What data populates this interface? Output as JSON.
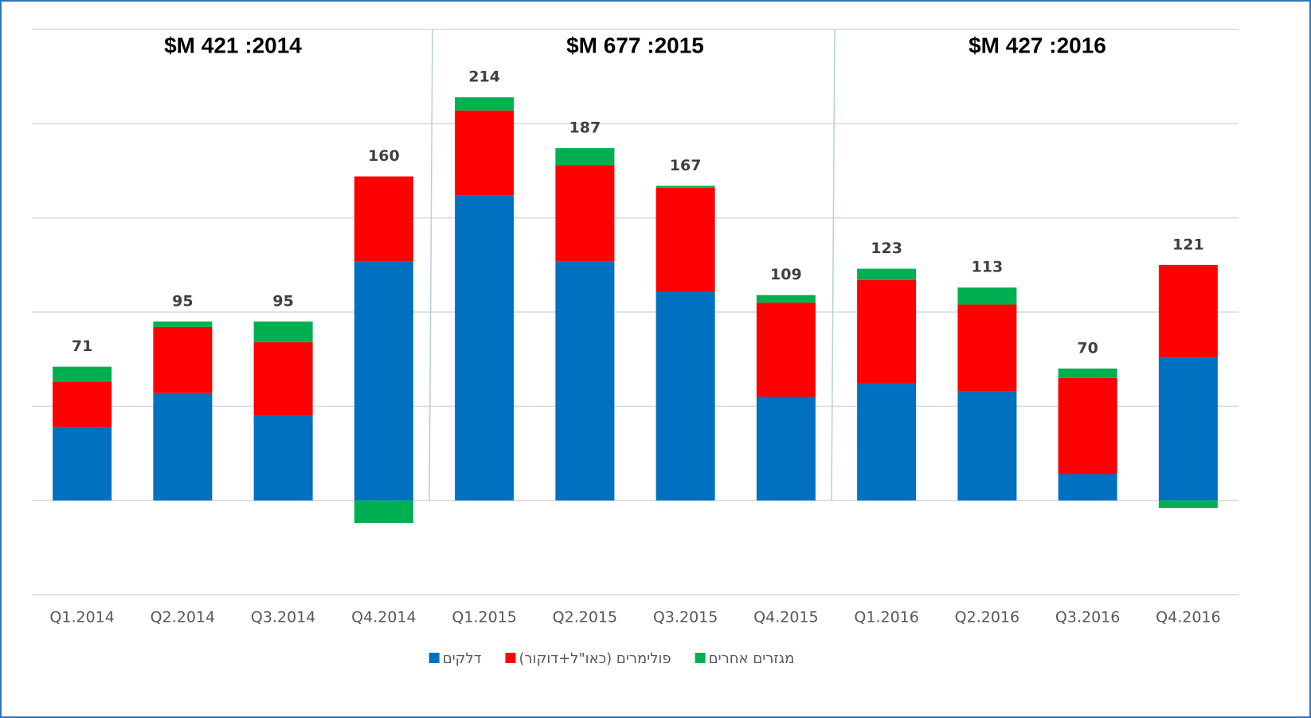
{
  "chart_data": {
    "type": "stacked_bar",
    "categories": [
      "Q1.2014",
      "Q2.2014",
      "Q3.2014",
      "Q4.2014",
      "Q1.2015",
      "Q2.2015",
      "Q3.2015",
      "Q4.2015",
      "Q1.2016",
      "Q2.2016",
      "Q3.2016",
      "Q4.2016"
    ],
    "series": [
      {
        "name": "דלקים",
        "color": "#0070c0",
        "values": [
          39,
          57,
          45,
          127,
          162,
          127,
          111,
          55,
          62,
          58,
          14,
          76
        ]
      },
      {
        "name": "פולימרים (כאו\"ל+דוקור)",
        "color": "#ff0000",
        "values": [
          24,
          35,
          39,
          45,
          45,
          51,
          55,
          50,
          55,
          46,
          51,
          49
        ]
      },
      {
        "name": "מגזרים אחרים",
        "color": "#00b050",
        "values": [
          8,
          3,
          11,
          -12,
          7,
          9,
          1,
          4,
          6,
          9,
          5,
          -4
        ]
      }
    ],
    "totals": [
      71,
      95,
      95,
      160,
      214,
      187,
      167,
      109,
      123,
      113,
      70,
      121
    ],
    "annotations": [
      "$M 421 :2014",
      "$M 677 :2015",
      "$M 427 :2016"
    ],
    "ylim": [
      -50,
      250
    ],
    "yticks": [
      -50,
      0,
      50,
      100,
      150,
      200,
      250
    ],
    "grid": true
  }
}
